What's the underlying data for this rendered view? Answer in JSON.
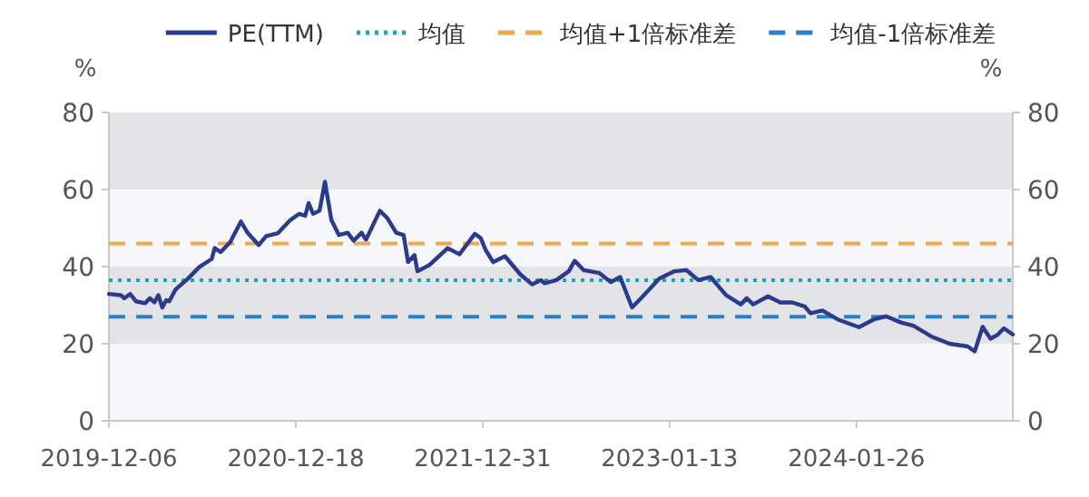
{
  "chart_data": {
    "type": "line",
    "ylabel": "%",
    "y2label": "%",
    "xlim": [
      "2019-12-06",
      "2024-12-07"
    ],
    "xticks": [
      "2019-12-06",
      "2020-12-18",
      "2021-12-31",
      "2023-01-13",
      "2024-01-26"
    ],
    "ylim": [
      0,
      80
    ],
    "yticks": [
      0,
      20,
      40,
      60,
      80
    ],
    "y2lim": [
      0,
      80
    ],
    "y2ticks": [
      0,
      20,
      40,
      60,
      80
    ],
    "grid": false,
    "legend": "top",
    "line_style": "solid",
    "marker": "none",
    "x": [
      "2019-12-06",
      "2019-12-30",
      "2020-01-06",
      "2020-01-18",
      "2020-01-30",
      "2020-02-17",
      "2020-02-27",
      "2020-03-07",
      "2020-03-15",
      "2020-03-23",
      "2020-03-31",
      "2020-04-06",
      "2020-04-19",
      "2020-05-13",
      "2020-06-06",
      "2020-07-01",
      "2020-07-07",
      "2020-07-19",
      "2020-08-07",
      "2020-08-29",
      "2020-09-12",
      "2020-10-04",
      "2020-10-19",
      "2020-11-12",
      "2020-12-07",
      "2020-12-25",
      "2021-01-06",
      "2021-01-13",
      "2021-01-22",
      "2021-02-04",
      "2021-02-15",
      "2021-02-28",
      "2021-03-15",
      "2021-04-02",
      "2021-04-14",
      "2021-04-30",
      "2021-05-09",
      "2021-06-06",
      "2021-06-21",
      "2021-07-09",
      "2021-07-24",
      "2021-08-02",
      "2021-08-15",
      "2021-08-21",
      "2021-09-14",
      "2021-10-21",
      "2021-11-14",
      "2021-12-15",
      "2021-12-27",
      "2022-01-06",
      "2022-01-21",
      "2022-02-14",
      "2022-03-17",
      "2022-04-10",
      "2022-04-28",
      "2022-05-05",
      "2022-05-29",
      "2022-06-23",
      "2022-07-05",
      "2022-07-23",
      "2022-08-23",
      "2022-09-16",
      "2022-10-05",
      "2022-10-29",
      "2022-11-22",
      "2022-12-23",
      "2023-01-23",
      "2023-02-16",
      "2023-03-12",
      "2023-04-06",
      "2023-05-07",
      "2023-06-06",
      "2023-06-18",
      "2023-07-01",
      "2023-07-31",
      "2023-08-25",
      "2023-09-18",
      "2023-10-13",
      "2023-10-25",
      "2023-11-18",
      "2023-12-19",
      "2024-01-31",
      "2024-03-01",
      "2024-03-26",
      "2024-04-25",
      "2024-05-20",
      "2024-06-25",
      "2024-08-01",
      "2024-09-07",
      "2024-09-21",
      "2024-10-07",
      "2024-10-23",
      "2024-11-07",
      "2024-11-19",
      "2024-12-07"
    ],
    "series": [
      {
        "name": "PE(TTM)",
        "color": "#2b3a8c",
        "values": [
          32.9,
          32.6,
          31.8,
          32.9,
          31.0,
          30.5,
          31.8,
          30.7,
          32.6,
          29.4,
          31.3,
          31.0,
          34.1,
          36.8,
          39.9,
          42.0,
          44.8,
          43.8,
          46.3,
          51.7,
          48.7,
          45.6,
          47.9,
          48.7,
          52.1,
          53.7,
          53.2,
          56.5,
          53.7,
          54.5,
          62.0,
          52.1,
          48.2,
          48.8,
          46.7,
          48.8,
          47.0,
          54.5,
          52.6,
          48.8,
          48.2,
          41.2,
          43.0,
          38.8,
          40.4,
          44.8,
          43.2,
          48.5,
          47.4,
          44.3,
          41.2,
          42.7,
          38.0,
          35.4,
          36.5,
          35.7,
          36.5,
          38.8,
          41.5,
          39.1,
          38.4,
          36.0,
          37.3,
          29.4,
          32.6,
          36.9,
          38.8,
          39.1,
          36.5,
          37.3,
          32.6,
          30.2,
          31.8,
          30.2,
          32.3,
          30.7,
          30.7,
          29.7,
          27.9,
          28.6,
          26.3,
          24.3,
          26.3,
          27.1,
          25.5,
          24.7,
          21.9,
          20.0,
          19.3,
          18.0,
          24.4,
          21.3,
          22.4,
          24.0,
          22.4
        ]
      }
    ],
    "ref_lines": [
      {
        "axis": "y",
        "value": 36.5,
        "label": "均值",
        "color": "#1aa6b7",
        "line_style": "dotted"
      },
      {
        "axis": "y",
        "value": 46.0,
        "label": "均值+1倍标准差",
        "color": "#f0a84a",
        "line_style": "dashed"
      },
      {
        "axis": "y",
        "value": 27.0,
        "label": "均值-1倍标准差",
        "color": "#2a7fc9",
        "line_style": "dashed"
      }
    ],
    "bands": [
      {
        "axis": "y",
        "from": 0,
        "to": 20,
        "color": "#f6f7fb"
      },
      {
        "axis": "y",
        "from": 20,
        "to": 40,
        "color": "#e3e4e8"
      },
      {
        "axis": "y",
        "from": 40,
        "to": 60,
        "color": "#f6f7fb"
      },
      {
        "axis": "y",
        "from": 60,
        "to": 80,
        "color": "#e3e4e8"
      }
    ]
  }
}
